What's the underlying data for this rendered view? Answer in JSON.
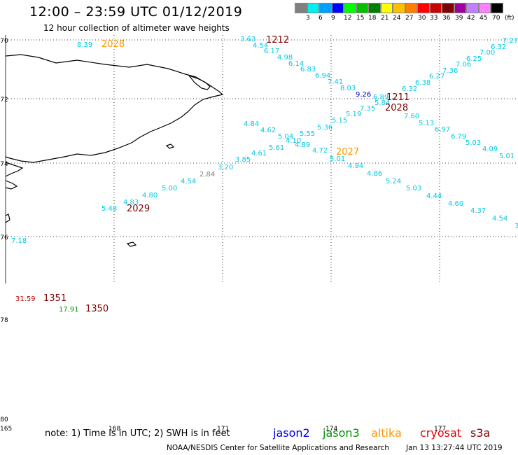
{
  "header": {
    "title": "12:00 – 23:59 UTC 01/12/2019",
    "subtitle": "12 hour collection of altimeter wave heights"
  },
  "legend": {
    "colors": [
      "#808080",
      "#00f0f0",
      "#00a0ff",
      "#0000ff",
      "#00ff00",
      "#00c000",
      "#008000",
      "#ffff00",
      "#ffc000",
      "#ff8000",
      "#ff0000",
      "#c80000",
      "#800000",
      "#a000a0",
      "#c080ff",
      "#ff80ff",
      "#000000"
    ],
    "labels": [
      "3",
      "6",
      "9",
      "12",
      "15",
      "18",
      "21",
      "24",
      "27",
      "30",
      "33",
      "36",
      "39",
      "42",
      "45",
      "70",
      "(ft)"
    ]
  },
  "axes": {
    "lat_labels": [
      "-70",
      "-72",
      "-74",
      "-76",
      "-78",
      "-80"
    ],
    "lon_labels": [
      "165",
      "168",
      "171",
      "174",
      "177"
    ]
  },
  "tracks": [
    {
      "color": "#00c8e6",
      "points": [
        {
          "text": "7.27"
        },
        {
          "text": "6.32"
        },
        {
          "text": "7.00"
        },
        {
          "text": "6.25"
        },
        {
          "text": "7.06"
        },
        {
          "text": "7.36"
        },
        {
          "text": "6.27"
        },
        {
          "text": "6.38"
        },
        {
          "text": "6.32"
        },
        {
          "text": "5.84"
        },
        {
          "text": "7.35"
        },
        {
          "text": "5.19"
        },
        {
          "text": "5.15"
        },
        {
          "text": "5.36"
        },
        {
          "text": "5.55"
        },
        {
          "text": "5.04"
        },
        {
          "text": "4.10"
        },
        {
          "text": "4.89"
        },
        {
          "text": "5.61"
        },
        {
          "text": "4.61"
        },
        {
          "text": "3.85"
        },
        {
          "text": "3.20"
        },
        {
          "text": "4.54"
        },
        {
          "text": "5.00"
        },
        {
          "text": "4.80"
        },
        {
          "text": "4.83"
        },
        {
          "text": "5.48"
        },
        {
          "text": "4.84"
        },
        {
          "text": "4.62"
        },
        {
          "text": "4.72"
        },
        {
          "text": "5.01"
        }
      ]
    },
    {
      "color": "#00c8e6",
      "points": [
        {
          "text": "3.63"
        },
        {
          "text": "4.54"
        },
        {
          "text": "6.17"
        },
        {
          "text": "4.98"
        },
        {
          "text": "6.14"
        },
        {
          "text": "6.83"
        },
        {
          "text": "6.94"
        },
        {
          "text": "7.41"
        },
        {
          "text": "8.03"
        },
        {
          "text": "6.89"
        },
        {
          "text": "7.60"
        },
        {
          "text": "5.13"
        },
        {
          "text": "6.97"
        },
        {
          "text": "6.79"
        },
        {
          "text": "5.03"
        },
        {
          "text": "4.09"
        },
        {
          "text": "5.01"
        },
        {
          "text": "4.94"
        },
        {
          "text": "4.86"
        },
        {
          "text": "5.24"
        },
        {
          "text": "5.03"
        },
        {
          "text": "4.44"
        },
        {
          "text": "4.60"
        },
        {
          "text": "4.37"
        },
        {
          "text": "4.54"
        },
        {
          "text": "3"
        }
      ]
    }
  ],
  "other_points": [
    {
      "text": "8.39",
      "color": "#00c8e6"
    },
    {
      "text": "9.26",
      "color": "#0000c8"
    },
    {
      "text": "2.84",
      "color": "#808080"
    },
    {
      "text": "7.18",
      "color": "#00c8e6"
    },
    {
      "text": "31.59",
      "color": "#c80000"
    },
    {
      "text": "17.91",
      "color": "#009600"
    }
  ],
  "time_labels": [
    {
      "text": "2028",
      "color": "#ff9600"
    },
    {
      "text": "1212",
      "color": "#800000"
    },
    {
      "text": "1211",
      "color": "#800000"
    },
    {
      "text": "2028",
      "color": "#800000"
    },
    {
      "text": "2027",
      "color": "#ff9600"
    },
    {
      "text": "2029",
      "color": "#800000"
    },
    {
      "text": "1351",
      "color": "#800000"
    },
    {
      "text": "1350",
      "color": "#800000"
    }
  ],
  "footer": {
    "note": "note:  1) Time is in UTC;  2) SWH is in feet",
    "satellites": [
      {
        "name": "jason2",
        "color": "#0000e6"
      },
      {
        "name": "jason3",
        "color": "#009600"
      },
      {
        "name": "altika",
        "color": "#ff9600"
      },
      {
        "name": "cryosat",
        "color": "#e60000"
      },
      {
        "name": "s3a",
        "color": "#800000"
      }
    ],
    "credit": "NOAA/NESDIS Center for Satellite Applications and Research",
    "timestamp": "Jan 13 13:27:44 UTC 2019"
  }
}
